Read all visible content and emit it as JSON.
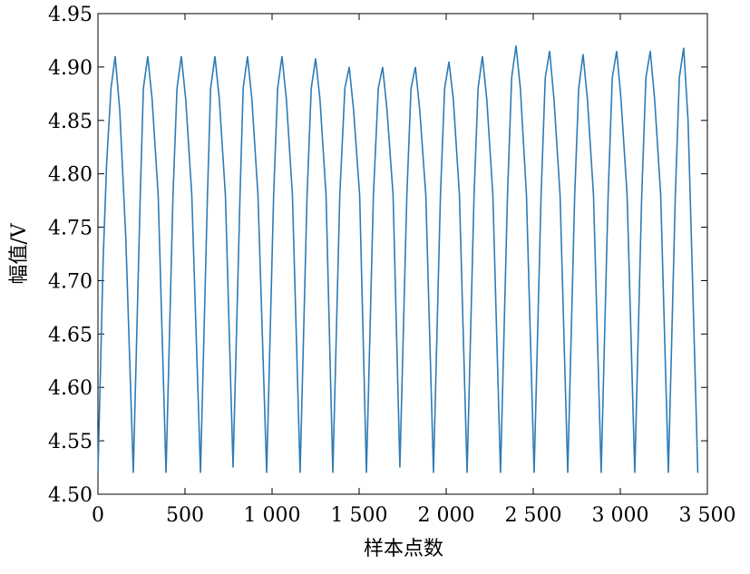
{
  "chart_data": {
    "type": "line",
    "x_label": "样本点数",
    "y_label": "幅值/V",
    "xlim": [
      0,
      3500
    ],
    "ylim": [
      4.5,
      4.95
    ],
    "xticks": [
      0,
      500,
      {
        "value": 1000,
        "label": "1 000"
      },
      {
        "value": 1500,
        "label": "1 500"
      },
      {
        "value": 2000,
        "label": "2 000"
      },
      {
        "value": 2500,
        "label": "2 500"
      },
      {
        "value": 3000,
        "label": "3 000"
      },
      {
        "value": 3500,
        "label": "3 500"
      }
    ],
    "yticks": [
      {
        "value": 4.5,
        "label": "4.50"
      },
      4.55,
      {
        "value": 4.6,
        "label": "4.60"
      },
      4.65,
      {
        "value": 4.7,
        "label": "4.70"
      },
      4.75,
      {
        "value": 4.8,
        "label": "4.80"
      },
      4.85,
      {
        "value": 4.9,
        "label": "4.90"
      },
      4.95
    ],
    "grid": false,
    "x": [
      0,
      30,
      50,
      75,
      99,
      125,
      160,
      203,
      243,
      261,
      286,
      311,
      346,
      391,
      431,
      454,
      479,
      504,
      539,
      589,
      629,
      647,
      672,
      697,
      732,
      776,
      816,
      834,
      859,
      884,
      919,
      969,
      1009,
      1032,
      1057,
      1082,
      1117,
      1161,
      1201,
      1225,
      1250,
      1275,
      1310,
      1349,
      1389,
      1418,
      1443,
      1468,
      1503,
      1542,
      1582,
      1610,
      1635,
      1660,
      1695,
      1734,
      1774,
      1798,
      1823,
      1848,
      1883,
      1927,
      1967,
      1991,
      2016,
      2041,
      2076,
      2120,
      2160,
      2183,
      2208,
      2233,
      2268,
      2312,
      2352,
      2376,
      2401,
      2426,
      2461,
      2505,
      2545,
      2569,
      2594,
      2619,
      2654,
      2698,
      2738,
      2761,
      2786,
      2811,
      2846,
      2890,
      2930,
      2954,
      2979,
      3004,
      3039,
      3083,
      3123,
      3147,
      3172,
      3197,
      3232,
      3276,
      3316,
      3339,
      3364,
      3389,
      3415,
      3445
    ],
    "series": [
      {
        "color": "#2e7bb5",
        "values": [
          4.52,
          4.72,
          4.81,
          4.88,
          4.91,
          4.86,
          4.74,
          4.52,
          4.78,
          4.88,
          4.91,
          4.87,
          4.78,
          4.52,
          4.78,
          4.88,
          4.91,
          4.87,
          4.78,
          4.52,
          4.78,
          4.88,
          4.91,
          4.87,
          4.78,
          4.525,
          4.78,
          4.88,
          4.91,
          4.87,
          4.78,
          4.52,
          4.78,
          4.88,
          4.91,
          4.87,
          4.78,
          4.52,
          4.78,
          4.88,
          4.908,
          4.87,
          4.78,
          4.52,
          4.78,
          4.88,
          4.9,
          4.86,
          4.78,
          4.52,
          4.78,
          4.88,
          4.9,
          4.86,
          4.78,
          4.525,
          4.78,
          4.88,
          4.9,
          4.86,
          4.78,
          4.52,
          4.78,
          4.88,
          4.905,
          4.87,
          4.78,
          4.52,
          4.78,
          4.88,
          4.91,
          4.87,
          4.78,
          4.52,
          4.78,
          4.89,
          4.92,
          4.88,
          4.78,
          4.52,
          4.78,
          4.89,
          4.915,
          4.87,
          4.78,
          4.52,
          4.78,
          4.88,
          4.912,
          4.87,
          4.78,
          4.52,
          4.78,
          4.89,
          4.915,
          4.87,
          4.78,
          4.52,
          4.78,
          4.89,
          4.915,
          4.87,
          4.78,
          4.52,
          4.78,
          4.89,
          4.918,
          4.85,
          4.7,
          4.52
        ]
      }
    ]
  }
}
